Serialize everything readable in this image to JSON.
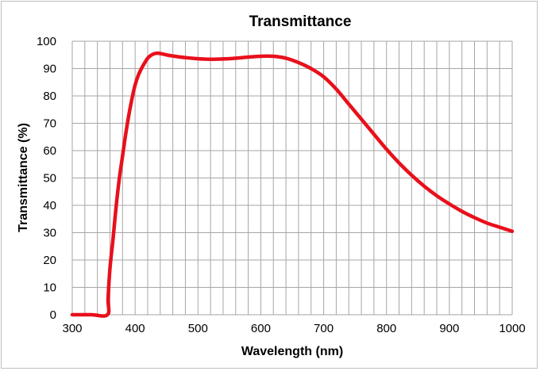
{
  "chart_data": {
    "type": "line",
    "title": "Transmittance",
    "xlabel": "Wavelength (nm)",
    "ylabel": "Transmittance (%)",
    "xlim": [
      300,
      1000
    ],
    "ylim": [
      0,
      100
    ],
    "x_ticks": [
      300,
      400,
      500,
      600,
      700,
      800,
      900,
      1000
    ],
    "y_ticks": [
      0,
      10,
      20,
      30,
      40,
      50,
      60,
      70,
      80,
      90,
      100
    ],
    "grid": true,
    "grid_minor_x_step": 20,
    "legend": "none",
    "line_color": "#e8101b",
    "grid_color": "#a6a6a6",
    "series": [
      {
        "x": [
          300,
          330,
          356,
          357,
          360,
          365,
          370,
          375,
          380,
          385,
          390,
          395,
          400,
          405,
          410,
          415,
          420,
          425,
          430,
          435,
          440,
          450,
          460,
          480,
          500,
          520,
          540,
          560,
          580,
          600,
          620,
          640,
          660,
          680,
          700,
          720,
          740,
          760,
          780,
          800,
          820,
          840,
          860,
          880,
          900,
          920,
          940,
          960,
          980,
          1000
        ],
        "y": [
          0,
          0,
          0,
          6,
          17,
          28,
          40,
          50,
          58,
          66,
          73,
          79,
          84,
          87.5,
          90,
          92,
          93.8,
          94.8,
          95.4,
          95.6,
          95.5,
          95,
          94.6,
          94,
          93.6,
          93.4,
          93.5,
          93.8,
          94.2,
          94.5,
          94.5,
          93.8,
          92.2,
          90,
          87,
          82.5,
          77,
          71.5,
          66,
          60.5,
          55.5,
          51,
          47,
          43.5,
          40.5,
          37.8,
          35.5,
          33.5,
          32,
          30.5
        ]
      }
    ]
  }
}
